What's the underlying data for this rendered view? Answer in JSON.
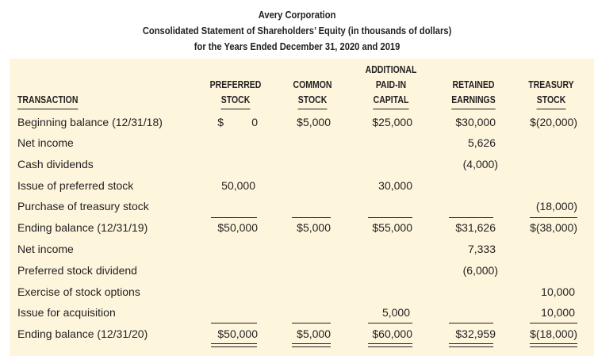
{
  "title": {
    "line1": "Avery Corporation",
    "line2": "Consolidated Statement of Shareholders’ Equity (in thousands of dollars)",
    "line3": "for the Years Ended December 31, 2020 and 2019"
  },
  "columns": {
    "transaction": "TRANSACTION",
    "preferred": [
      "PREFERRED",
      "STOCK"
    ],
    "common": [
      "COMMON",
      "STOCK"
    ],
    "apic": [
      "ADDITIONAL",
      "PAID-IN",
      "CAPITAL"
    ],
    "retained": [
      "RETAINED",
      "EARNINGS"
    ],
    "treasury": [
      "TREASURY",
      "STOCK"
    ]
  },
  "rows": [
    {
      "label": "Beginning balance (12/31/18)",
      "preferred_sign": "$",
      "preferred": "0",
      "common": "$5,000",
      "apic": "$25,000",
      "retained": "$30,000",
      "treasury": "$(20,000)"
    },
    {
      "label": "Net income",
      "preferred_sign": "",
      "preferred": "",
      "common": "",
      "apic": "",
      "retained": "5,626",
      "treasury": ""
    },
    {
      "label": "Cash dividends",
      "preferred_sign": "",
      "preferred": "",
      "common": "",
      "apic": "",
      "retained": "(4,000)",
      "treasury": ""
    },
    {
      "label": "Issue of preferred stock",
      "preferred_sign": "",
      "preferred": "50,000",
      "common": "",
      "apic": "30,000",
      "retained": "",
      "treasury": ""
    },
    {
      "label": "Purchase of treasury stock",
      "preferred_sign": "",
      "preferred": "",
      "common": "",
      "apic": "",
      "retained": "",
      "treasury": "(18,000)"
    },
    {
      "label": "Ending balance (12/31/19)",
      "preferred_sign": "",
      "preferred": "$50,000",
      "common": "$5,000",
      "apic": "$55,000",
      "retained": "$31,626",
      "treasury": "$(38,000)"
    },
    {
      "label": "Net income",
      "preferred_sign": "",
      "preferred": "",
      "common": "",
      "apic": "",
      "retained": "7,333",
      "treasury": ""
    },
    {
      "label": "Preferred stock dividend",
      "preferred_sign": "",
      "preferred": "",
      "common": "",
      "apic": "",
      "retained": "(6,000)",
      "treasury": ""
    },
    {
      "label": "Exercise of stock options",
      "preferred_sign": "",
      "preferred": "",
      "common": "",
      "apic": "",
      "retained": "",
      "treasury": "10,000"
    },
    {
      "label": "Issue for acquisition",
      "preferred_sign": "",
      "preferred": "",
      "common": "",
      "apic": "5,000",
      "retained": "",
      "treasury": "10,000"
    },
    {
      "label": "Ending balance (12/31/20)",
      "preferred_sign": "",
      "preferred": "$50,000",
      "common": "$5,000",
      "apic": "$60,000",
      "retained": "$32,959",
      "treasury": "$(18,000)"
    }
  ]
}
